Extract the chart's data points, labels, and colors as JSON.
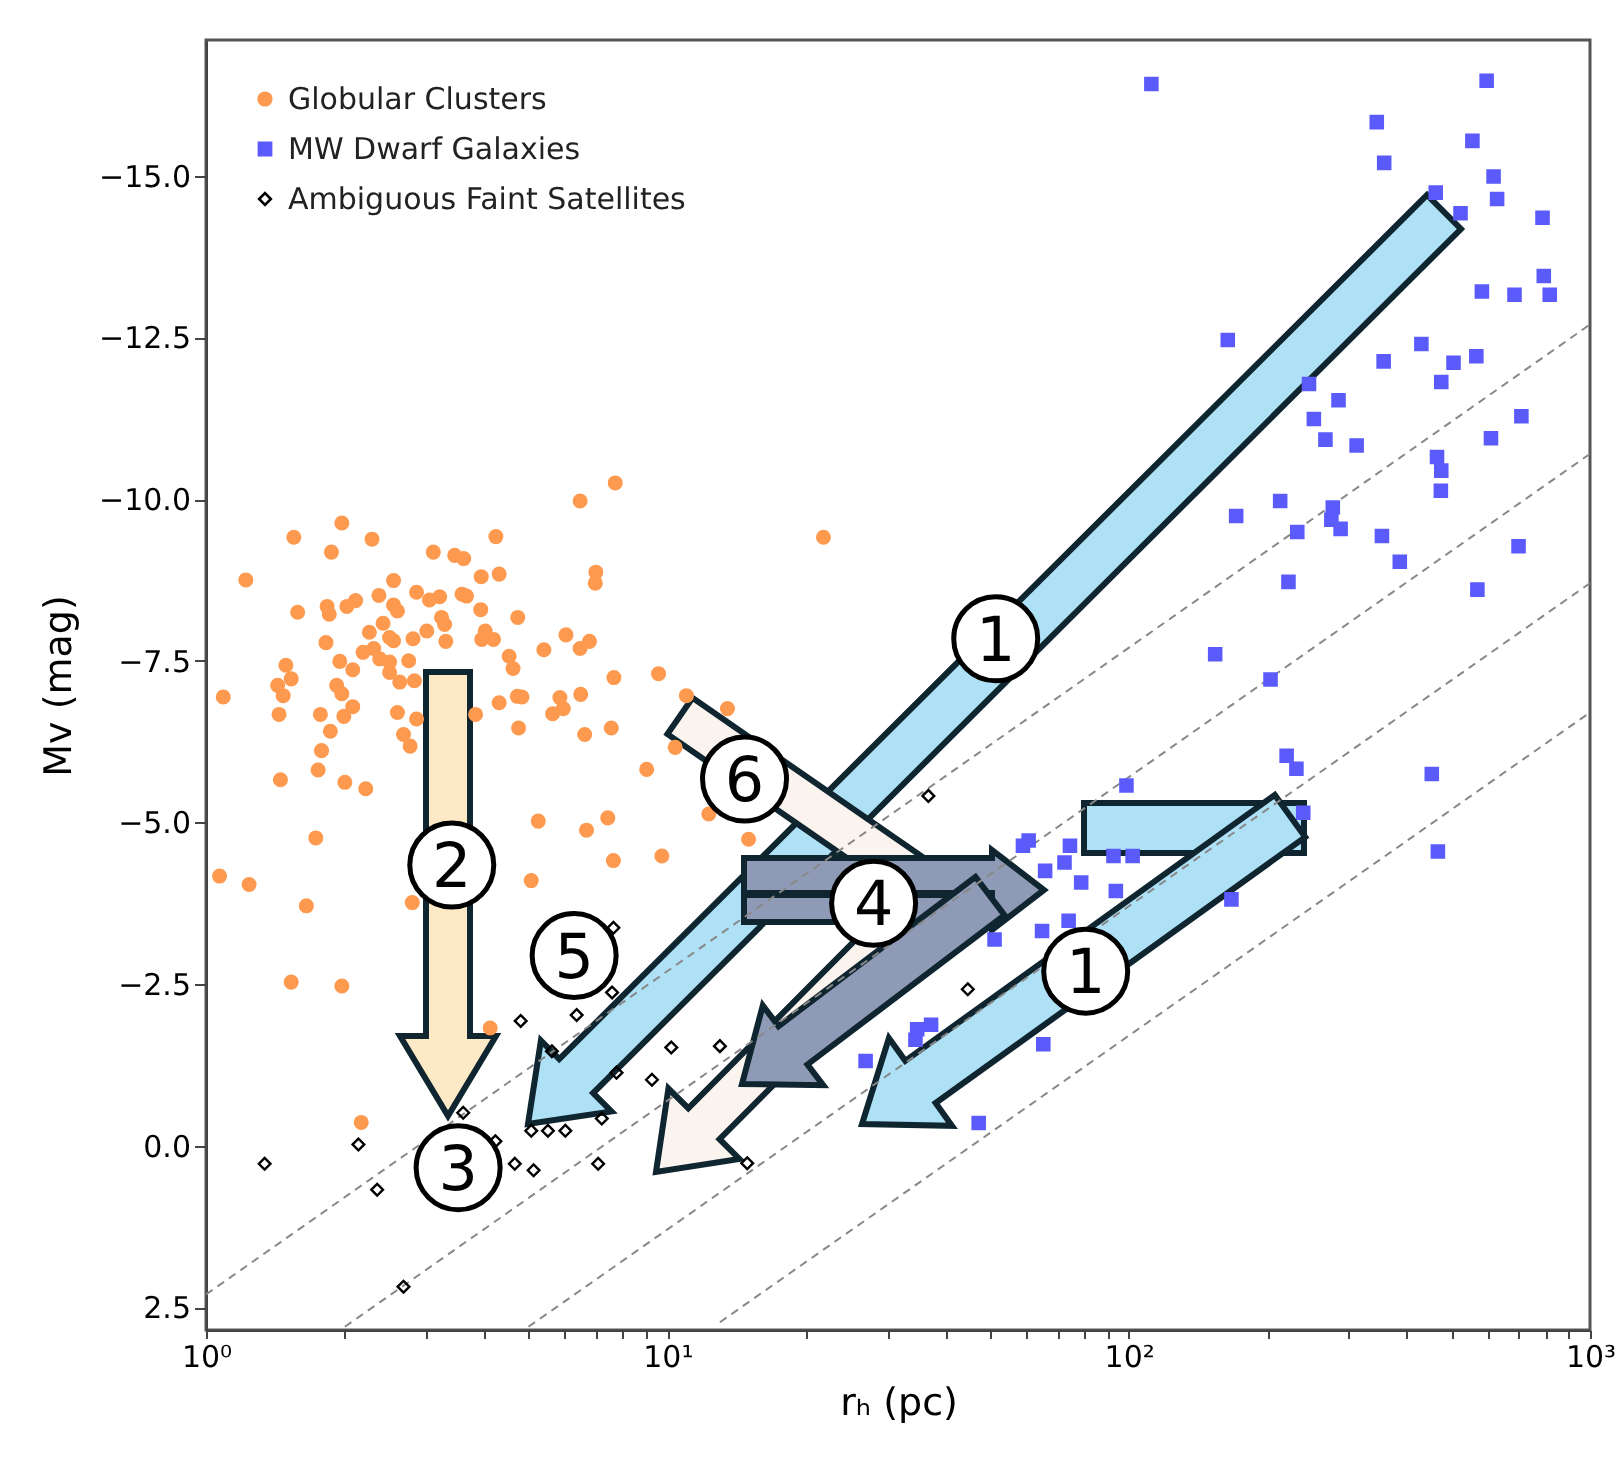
{
  "chart_data": {
    "type": "scatter",
    "xlabel": "rₕ (pc)",
    "ylabel": "Mv (mag)",
    "log": "x",
    "xlim": [
      1,
      1000
    ],
    "ylim": [
      2.85,
      -17.1
    ],
    "xticks": [
      {
        "value": 1,
        "label": "10⁰"
      },
      {
        "value": 2,
        "label": null
      },
      {
        "value": 3,
        "label": null
      },
      {
        "value": 4,
        "label": null
      },
      {
        "value": 5,
        "label": null
      },
      {
        "value": 6,
        "label": null
      },
      {
        "value": 7,
        "label": null
      },
      {
        "value": 8,
        "label": null
      },
      {
        "value": 9,
        "label": null
      },
      {
        "value": 10,
        "label": "10¹"
      },
      {
        "value": 20,
        "label": null
      },
      {
        "value": 30,
        "label": null
      },
      {
        "value": 40,
        "label": null
      },
      {
        "value": 50,
        "label": null
      },
      {
        "value": 60,
        "label": null
      },
      {
        "value": 70,
        "label": null
      },
      {
        "value": 80,
        "label": null
      },
      {
        "value": 90,
        "label": null
      },
      {
        "value": 100,
        "label": "10²"
      },
      {
        "value": 200,
        "label": null
      },
      {
        "value": 300,
        "label": null
      },
      {
        "value": 400,
        "label": null
      },
      {
        "value": 500,
        "label": null
      },
      {
        "value": 600,
        "label": null
      },
      {
        "value": 700,
        "label": null
      },
      {
        "value": 800,
        "label": null
      },
      {
        "value": 900,
        "label": null
      },
      {
        "value": 1000,
        "label": "10³"
      }
    ],
    "yticks": [
      {
        "value": -15,
        "label": "−15.0"
      },
      {
        "value": -12.5,
        "label": "−12.5"
      },
      {
        "value": -10,
        "label": "−10.0"
      },
      {
        "value": -7.5,
        "label": "−7.5"
      },
      {
        "value": -5,
        "label": "−5.0"
      },
      {
        "value": -2.5,
        "label": "−2.5"
      },
      {
        "value": 0,
        "label": "0.0"
      },
      {
        "value": 2.5,
        "label": "2.5"
      }
    ],
    "grid": false,
    "legend": "top left",
    "annotations": [
      {
        "text": "1",
        "x": 51.5,
        "y": -7.84
      },
      {
        "text": "2",
        "x": 3.41,
        "y": -4.34
      },
      {
        "text": "3",
        "x": 3.52,
        "y": 0.34
      },
      {
        "text": "4",
        "x": 28.0,
        "y": -3.75
      },
      {
        "text": "5",
        "x": 6.28,
        "y": -2.94
      },
      {
        "text": "6",
        "x": 14.7,
        "y": -5.67
      },
      {
        "text": "1",
        "x": 80.7,
        "y": -2.7
      }
    ],
    "series": [
      {
        "type": "line",
        "color": "#888888",
        "line_style": "dashed",
        "marker": "none",
        "x": [
          1,
          1000
        ],
        "values": [
          2.3,
          -12.7
        ]
      },
      {
        "type": "line",
        "color": "#888888",
        "line_style": "dashed",
        "marker": "none",
        "x": [
          2,
          1000
        ],
        "values": [
          2.8,
          -10.7
        ]
      },
      {
        "type": "line",
        "color": "#888888",
        "line_style": "dashed",
        "marker": "none",
        "x": [
          5,
          1000
        ],
        "values": [
          2.8,
          -8.7
        ]
      },
      {
        "type": "line",
        "color": "#888888",
        "line_style": "dashed",
        "marker": "none",
        "x": [
          13,
          1000
        ],
        "values": [
          2.73,
          -6.7
        ]
      },
      {
        "name": "Globular Clusters",
        "color": "#fd9a4f",
        "marker": "circle",
        "x": [
          1.09,
          1.22,
          1.55,
          1.97,
          1.87,
          2.29,
          1.58,
          1.83,
          1.85,
          2.02,
          2.11,
          2.37,
          2.55,
          2.55,
          2.6,
          2.42,
          2.26,
          2.5,
          2.55,
          2.19,
          2.31,
          2.38,
          2.5,
          2.5,
          2.63,
          2.75,
          2.81,
          3.01,
          2.86,
          3.05,
          3.21,
          3.24,
          3.29,
          3.31,
          3.11,
          3.46,
          3.62,
          3.59,
          3.67,
          3.95,
          4.32,
          4.25,
          3.94,
          4.03,
          3.96,
          4.2,
          4.74,
          4.54,
          4.63,
          5.4,
          6.03,
          6.47,
          6.78,
          6.47,
          7.71,
          7.0,
          6.98,
          21.8,
          7.66,
          9.57,
          11.0,
          13.5,
          10.4,
          9.02,
          12.3,
          15.0,
          7.43,
          6.68,
          5.25,
          1.73,
          1.45,
          1.75,
          1.78,
          2.0,
          2.22,
          1.86,
          2.08,
          1.99,
          1.77,
          1.44,
          1.47,
          1.43,
          1.49,
          1.53,
          1.92,
          1.97,
          2.6,
          2.68,
          2.77,
          2.86,
          2.83,
          3.84,
          4.32,
          4.76,
          4.73,
          4.84,
          5.64,
          5.85,
          5.95,
          6.49,
          6.62,
          7.56,
          1.82,
          1.95,
          2.08,
          1.07,
          1.24,
          1.65,
          1.53,
          1.97,
          2.17,
          4.13,
          2.8,
          5.07,
          7.64,
          9.73
        ],
        "values": [
          -6.94,
          -8.75,
          -9.41,
          -9.63,
          -9.18,
          -9.38,
          -8.25,
          -8.34,
          -8.22,
          -8.34,
          -8.43,
          -8.51,
          -8.74,
          -8.36,
          -8.27,
          -8.08,
          -7.94,
          -7.86,
          -7.81,
          -7.63,
          -7.69,
          -7.53,
          -7.48,
          -7.32,
          -7.17,
          -7.5,
          -7.84,
          -7.96,
          -8.56,
          -8.44,
          -8.49,
          -8.17,
          -8.06,
          -7.8,
          -9.18,
          -9.13,
          -9.08,
          -8.53,
          -8.5,
          -8.8,
          -8.84,
          -9.42,
          -8.29,
          -7.96,
          -7.83,
          -7.83,
          -8.17,
          -7.57,
          -7.38,
          -7.67,
          -7.9,
          -7.69,
          -7.8,
          -9.97,
          -10.25,
          -8.87,
          -8.7,
          -9.41,
          -7.24,
          -7.3,
          -6.96,
          -6.76,
          -6.16,
          -5.82,
          -5.13,
          -4.74,
          -5.07,
          -4.88,
          -5.02,
          -4.76,
          -5.66,
          -5.81,
          -6.11,
          -5.62,
          -5.52,
          -6.41,
          -6.79,
          -6.64,
          -6.67,
          -6.67,
          -6.96,
          -7.12,
          -7.43,
          -7.22,
          -7.12,
          -6.99,
          -6.7,
          -6.36,
          -6.18,
          -6.6,
          -7.19,
          -6.67,
          -6.85,
          -6.46,
          -6.95,
          -6.94,
          -6.68,
          -6.93,
          -6.76,
          -6.98,
          -6.36,
          -6.46,
          -7.78,
          -7.49,
          -7.36,
          -4.17,
          -4.04,
          -3.71,
          -2.53,
          -2.47,
          -0.36,
          -1.82,
          -3.76,
          -4.1,
          -4.41,
          -4.48
        ]
      },
      {
        "name": "MW Dwarf Galaxies",
        "color": "#5b5bfb",
        "marker": "square",
        "x": [
          98.9,
          231,
          239,
          59,
          60.7,
          74.6,
          92.7,
          102,
          65.9,
          72.6,
          78.9,
          93.8,
          167,
          74.1,
          64.9,
          51.2,
          37.3,
          34.8,
          34.5,
          26.9,
          65.3,
          47.3,
          154,
          203,
          220,
          454,
          468,
          112,
          597,
          345,
          358,
          556,
          618,
          629,
          463,
          524,
          789,
          794,
          583,
          686,
          818,
          164,
          431,
          567,
          357,
          506,
          476,
          246,
          285,
          252,
          267,
          312,
          710,
          610,
          466,
          476,
          475,
          213,
          171,
          232,
          277,
          275,
          288,
          354,
          387,
          700,
          222,
          570
        ],
        "values": [
          -5.57,
          -5.83,
          -5.15,
          -4.64,
          -4.72,
          -4.64,
          -4.48,
          -4.48,
          -4.25,
          -4.38,
          -4.07,
          -3.94,
          -3.81,
          -3.48,
          -3.32,
          -3.19,
          -1.87,
          -1.8,
          -1.64,
          -1.31,
          -1.57,
          -0.35,
          -7.6,
          -7.21,
          -6.03,
          -5.75,
          -4.55,
          -16.42,
          -16.47,
          -15.83,
          -15.2,
          -15.54,
          -14.99,
          -14.64,
          -14.74,
          -14.42,
          -14.35,
          -13.45,
          -13.21,
          -13.16,
          -13.16,
          -12.46,
          -12.4,
          -12.21,
          -12.13,
          -12.11,
          -11.81,
          -11.78,
          -11.53,
          -11.24,
          -10.92,
          -10.83,
          -11.28,
          -10.94,
          -10.65,
          -10.44,
          -10.13,
          -9.97,
          -9.74,
          -9.49,
          -9.87,
          -9.68,
          -9.54,
          -9.43,
          -9.03,
          -9.27,
          -8.72,
          -8.6
        ]
      },
      {
        "name": "Ambiguous Faint Satellites",
        "color": "#000000",
        "marker": "diamond",
        "x": [
          1.34,
          2.14,
          2.35,
          2.68,
          3.61,
          4.24,
          4.67,
          5.13,
          5.07,
          5.51,
          6.01,
          7.08,
          7.21,
          7.76,
          9.26,
          10.2,
          13,
          14.9,
          5.62,
          4.81,
          6.36,
          7.59,
          7.64,
          36.8,
          44.8
        ],
        "values": [
          0.28,
          -0.02,
          0.68,
          2.18,
          -0.51,
          -0.07,
          0.28,
          0.38,
          -0.23,
          -0.23,
          -0.23,
          0.28,
          -0.42,
          -1.13,
          -1.02,
          -1.52,
          -1.54,
          0.27,
          -1.46,
          -1.93,
          -2.02,
          -2.37,
          -3.37,
          -5.41,
          -2.42
        ]
      }
    ]
  }
}
